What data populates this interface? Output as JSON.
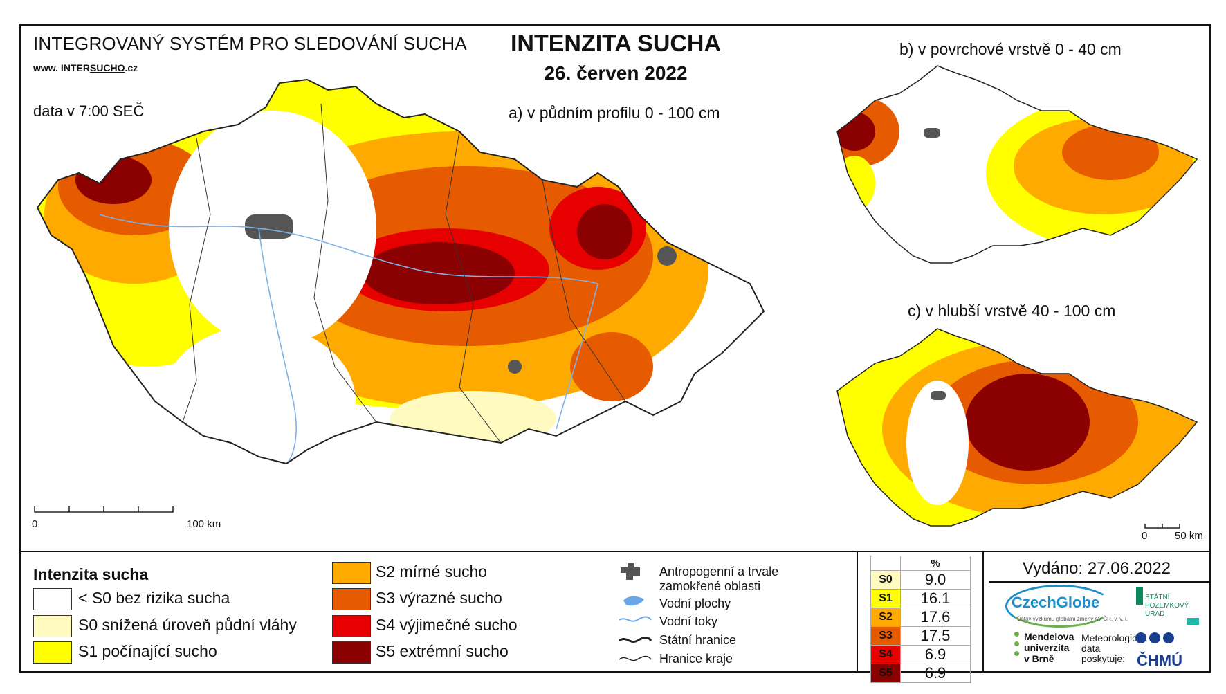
{
  "header": {
    "system_name": "INTEGROVANÝ SYSTÉM PRO SLEDOVÁNÍ SUCHA",
    "url_prefix": "www. INTER",
    "url_sucho": "SUCHO",
    "url_suffix": ".cz",
    "data_time": "data v 7:00 SEČ",
    "title": "INTENZITA SUCHA",
    "date": "26. červen 2022"
  },
  "maps": {
    "main": {
      "label": "a) v půdním profilu 0 - 100 cm",
      "scale_start": "0",
      "scale_end": "100 km"
    },
    "surface": {
      "label": "b) v povrchové vrstvě 0 - 40 cm"
    },
    "deep": {
      "label": "c) v hlubší vrstvě 40 - 100 cm",
      "scale_start": "0",
      "scale_end": "50 km"
    }
  },
  "legend": {
    "title": "Intenzita sucha",
    "classes": [
      {
        "label": "< S0 bez rizika sucha",
        "color": "#ffffff"
      },
      {
        "label": "S0 snížená úroveň půdní vláhy",
        "color": "#fffac0"
      },
      {
        "label": "S1 počínající sucho",
        "color": "#ffff00"
      },
      {
        "label": "S2 mírné sucho",
        "color": "#ffaa00"
      },
      {
        "label": "S3 výrazné sucho",
        "color": "#e65a00"
      },
      {
        "label": "S4 výjimečné sucho",
        "color": "#e60000"
      },
      {
        "label": "S5 extrémní sucho",
        "color": "#8b0000"
      }
    ],
    "symbols": {
      "anthropogenic": "Antropogenní a trvale zamokřené oblasti",
      "water_bodies": "Vodní plochy",
      "rivers": "Vodní toky",
      "state_border": "Státní hranice",
      "region_border": "Hranice kraje"
    }
  },
  "stats": {
    "unit_header": "%",
    "rows": [
      {
        "cls": "S0",
        "value": "9.0",
        "color": "#fffac0"
      },
      {
        "cls": "S1",
        "value": "16.1",
        "color": "#ffff00"
      },
      {
        "cls": "S2",
        "value": "17.6",
        "color": "#ffaa00"
      },
      {
        "cls": "S3",
        "value": "17.5",
        "color": "#e65a00"
      },
      {
        "cls": "S4",
        "value": "6.9",
        "color": "#e60000"
      },
      {
        "cls": "S5",
        "value": "6.9",
        "color": "#8b0000"
      }
    ]
  },
  "footer": {
    "issued": "Vydáno: 27.06.2022",
    "czechglobe": "CzechGlobe",
    "czechglobe_sub": "Ústav výzkumu globální změny AV ČR, v. v. i.",
    "spu": "STÁTNÍ POZEMKOVÝ ÚŘAD",
    "mendel": "Mendelova univerzita v Brně",
    "met_data": "Meteorologická data poskytuje:",
    "chmu": "ČHMÚ"
  }
}
